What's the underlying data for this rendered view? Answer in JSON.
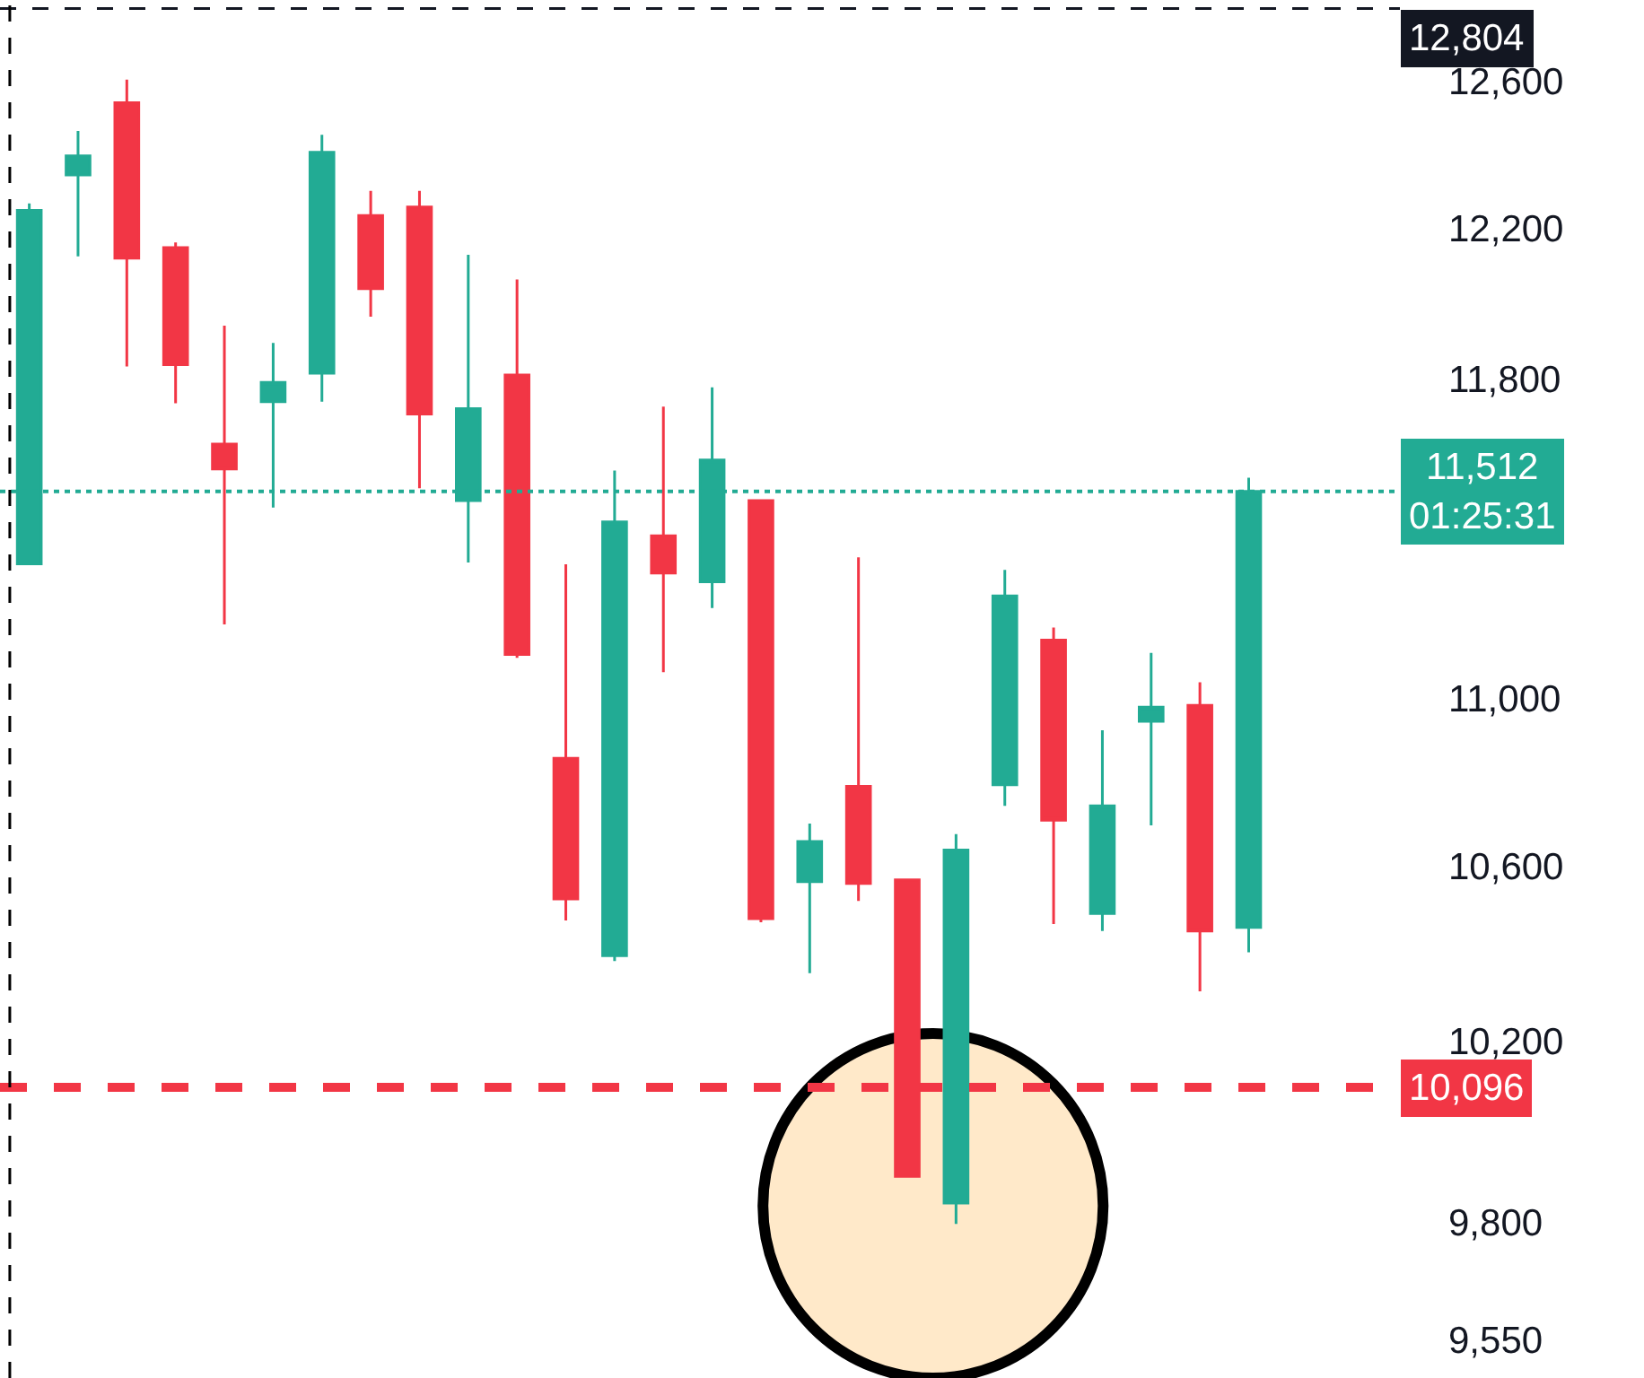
{
  "chart_data": {
    "type": "candlestick",
    "categories": [
      null,
      null,
      null,
      null,
      null,
      null,
      null,
      null,
      null,
      null,
      null,
      null,
      null,
      null,
      null,
      null,
      null,
      null,
      null,
      null,
      null,
      null,
      null,
      null,
      null,
      null
    ],
    "ohlc": [
      [
        11330,
        12266,
        11330,
        12247
      ],
      [
        12343,
        12463,
        12124,
        12395
      ],
      [
        12541,
        12605,
        11833,
        12119
      ],
      [
        12147,
        12161,
        11738,
        11838
      ],
      [
        11633,
        11940,
        11180,
        11569
      ],
      [
        11742,
        11895,
        11471,
        11792
      ],
      [
        11816,
        12453,
        11742,
        12405
      ],
      [
        12233,
        12300,
        11964,
        12038
      ],
      [
        12256,
        12300,
        11520,
        11710
      ],
      [
        11489,
        12128,
        11333,
        11724
      ],
      [
        11811,
        12062,
        11098,
        11106
      ],
      [
        10855,
        11329,
        10474,
        10524
      ],
      [
        10393,
        11565,
        10381,
        11435
      ],
      [
        11400,
        11729,
        11063,
        11307
      ],
      [
        11285,
        11779,
        11220,
        11592
      ],
      [
        11489,
        11489,
        10470,
        10478
      ],
      [
        10564,
        10700,
        10353,
        10658
      ],
      [
        10788,
        11346,
        10519,
        10560
      ],
      [
        10568,
        10568,
        9900,
        9900
      ],
      [
        9842,
        10675,
        9797,
        10638
      ],
      [
        10792,
        11315,
        10742,
        11250
      ],
      [
        11141,
        11172,
        10466,
        10708
      ],
      [
        10490,
        10922,
        10450,
        10742
      ],
      [
        10944,
        11110,
        10696,
        10978
      ],
      [
        10982,
        11038,
        10312,
        10450
      ],
      [
        10458,
        11547,
        10401,
        11512
      ]
    ],
    "colors": [
      "#22ab94",
      "#22ab94",
      "#f23645",
      "#f23645",
      "#f23645",
      "#22ab94",
      "#22ab94",
      "#f23645",
      "#f23645",
      "#22ab94",
      "#f23645",
      "#f23645",
      "#22ab94",
      "#f23645",
      "#22ab94",
      "#f23645",
      "#22ab94",
      "#f23645",
      "#f23645",
      "#22ab94",
      "#22ab94",
      "#f23645",
      "#22ab94",
      "#22ab94",
      "#f23645",
      "#22ab94"
    ],
    "ylim": [
      9470,
      12828
    ],
    "yticks": [
      {
        "value": 9550,
        "label": "9,550"
      },
      {
        "value": 9800,
        "label": "9,800"
      },
      {
        "value": 10200,
        "label": "10,200"
      },
      {
        "value": 10600,
        "label": "10,600"
      },
      {
        "value": 11000,
        "label": "11,000"
      },
      {
        "value": 11800,
        "label": "11,800"
      },
      {
        "value": 12200,
        "label": "12,200"
      },
      {
        "value": 12600,
        "label": "12,600"
      }
    ],
    "ref_lines": [
      {
        "axis": "y",
        "value": 12804,
        "label": "12,804",
        "color": "#131722",
        "line_style": "dashed"
      },
      {
        "axis": "y",
        "value": 11512,
        "label": "11,512\n01:25:31",
        "color": "#22ab94",
        "line_style": "dotted"
      },
      {
        "axis": "y",
        "value": 10096,
        "label": "10,096",
        "color": "#f23645",
        "line_style": "dashed"
      }
    ],
    "log": true
  }
}
